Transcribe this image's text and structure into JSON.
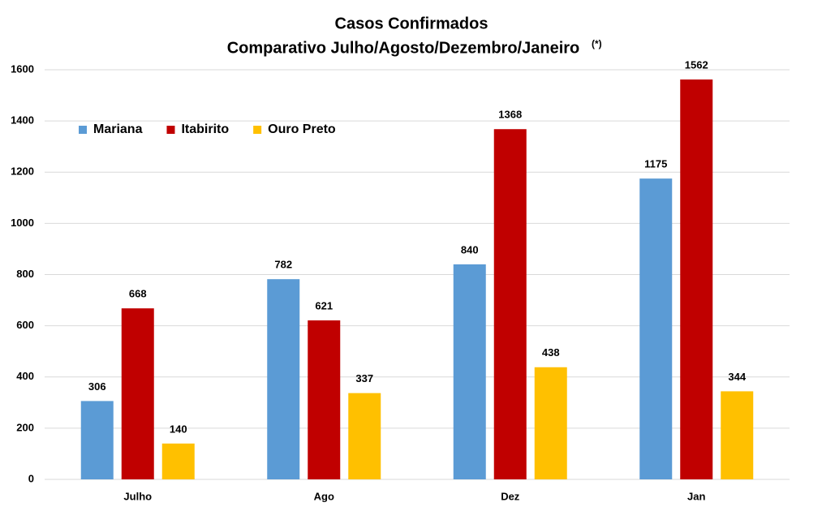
{
  "chart_data": {
    "type": "bar",
    "title": "Casos Confirmados",
    "subtitle": "Comparativo Julho/Agosto/Dezembro/Janeiro",
    "subtitle_note": "(*)",
    "categories": [
      "Julho",
      "Ago",
      "Dez",
      "Jan"
    ],
    "series": [
      {
        "name": "Mariana",
        "color": "#5b9bd5",
        "values": [
          306,
          782,
          840,
          1175
        ]
      },
      {
        "name": "Itabirito",
        "color": "#c00000",
        "values": [
          668,
          621,
          1368,
          1562
        ]
      },
      {
        "name": "Ouro Preto",
        "color": "#ffc000",
        "values": [
          140,
          337,
          438,
          344
        ]
      }
    ],
    "ylim": [
      0,
      1600
    ],
    "yticks": [
      0,
      200,
      400,
      600,
      800,
      1000,
      1200,
      1400,
      1600
    ],
    "grid": true,
    "legend": "top-left"
  }
}
